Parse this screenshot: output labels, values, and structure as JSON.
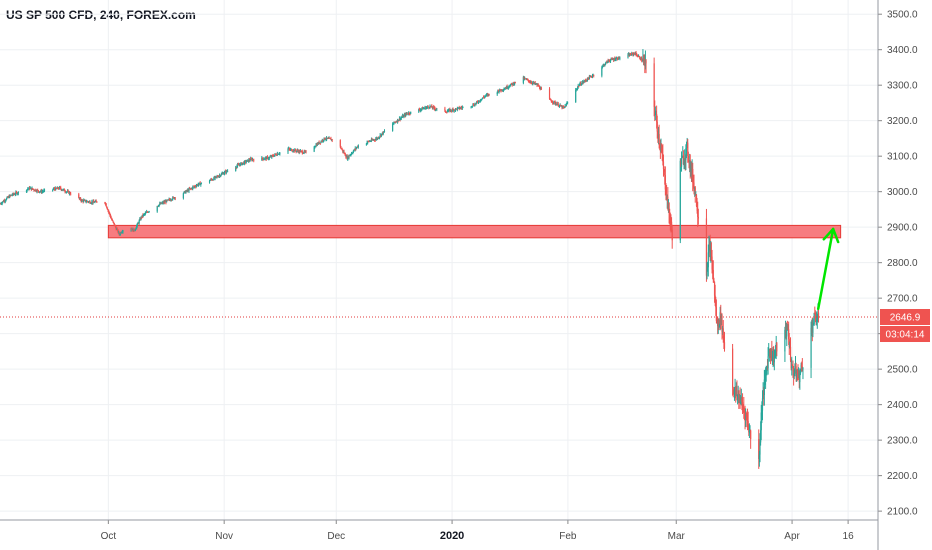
{
  "header": {
    "title": "US SP 500 CFD, 240, FOREX.com"
  },
  "price_tag": {
    "price": "2646.9",
    "countdown": "03:04:14"
  },
  "colors": {
    "up": "#26a69a",
    "down": "#ef5350",
    "zone_fill": "#f77c80",
    "zone_border": "#e53935",
    "arrow": "#00e600",
    "grid": "#eef0f3"
  },
  "chart_data": {
    "type": "candlestick",
    "symbol": "US SP 500 CFD",
    "timeframe": "240",
    "source": "FOREX.com",
    "y_ticks": [
      2100,
      2200,
      2300,
      2400,
      2500,
      2600,
      2700,
      2800,
      2900,
      3000,
      3100,
      3200,
      3300,
      3400,
      3500
    ],
    "y_tick_labels": [
      "2100.0",
      "2200.0",
      "2300.0",
      "2400.0",
      "2500.0",
      "2600.0",
      "2700.0",
      "2800.0",
      "2900.0",
      "3000.0",
      "3100.0",
      "3200.0",
      "3300.0",
      "3400.0",
      "3500.0"
    ],
    "ylim": [
      2075,
      3540
    ],
    "x_range": [
      "2019-09-02",
      "2020-04-24"
    ],
    "x_ticks": [
      {
        "date": "2019-10-01",
        "label": "Oct",
        "bold": false
      },
      {
        "date": "2019-11-01",
        "label": "Nov",
        "bold": false
      },
      {
        "date": "2019-12-01",
        "label": "Dec",
        "bold": false
      },
      {
        "date": "2020-01-01",
        "label": "2020",
        "bold": true
      },
      {
        "date": "2020-02-01",
        "label": "Feb",
        "bold": false
      },
      {
        "date": "2020-03-01",
        "label": "Mar",
        "bold": false
      },
      {
        "date": "2020-04-01",
        "label": "Apr",
        "bold": false
      },
      {
        "date": "2020-04-16",
        "label": "16",
        "bold": false
      }
    ],
    "path": [
      [
        "2019-09-02",
        2965
      ],
      [
        "2019-09-05",
        2990
      ],
      [
        "2019-09-10",
        3010
      ],
      [
        "2019-09-13",
        3000
      ],
      [
        "2019-09-18",
        3010
      ],
      [
        "2019-09-21",
        2995
      ],
      [
        "2019-09-24",
        2975
      ],
      [
        "2019-09-27",
        2970
      ],
      [
        "2019-09-30",
        2975
      ],
      [
        "2019-10-02",
        2920
      ],
      [
        "2019-10-04",
        2880
      ],
      [
        "2019-10-06",
        2905
      ],
      [
        "2019-10-08",
        2890
      ],
      [
        "2019-10-10",
        2930
      ],
      [
        "2019-10-13",
        2955
      ],
      [
        "2019-10-17",
        2975
      ],
      [
        "2019-10-21",
        2995
      ],
      [
        "2019-10-25",
        3020
      ],
      [
        "2019-10-29",
        3035
      ],
      [
        "2019-11-03",
        3065
      ],
      [
        "2019-11-08",
        3090
      ],
      [
        "2019-11-13",
        3095
      ],
      [
        "2019-11-18",
        3120
      ],
      [
        "2019-11-23",
        3110
      ],
      [
        "2019-11-28",
        3150
      ],
      [
        "2019-12-01",
        3145
      ],
      [
        "2019-12-04",
        3095
      ],
      [
        "2019-12-07",
        3130
      ],
      [
        "2019-12-12",
        3150
      ],
      [
        "2019-12-16",
        3190
      ],
      [
        "2019-12-20",
        3220
      ],
      [
        "2019-12-26",
        3240
      ],
      [
        "2019-12-30",
        3225
      ],
      [
        "2020-01-03",
        3235
      ],
      [
        "2020-01-07",
        3245
      ],
      [
        "2020-01-10",
        3270
      ],
      [
        "2020-01-15",
        3290
      ],
      [
        "2020-01-20",
        3320
      ],
      [
        "2020-01-24",
        3300
      ],
      [
        "2020-01-27",
        3260
      ],
      [
        "2020-01-31",
        3235
      ],
      [
        "2020-02-04",
        3300
      ],
      [
        "2020-02-08",
        3330
      ],
      [
        "2020-02-12",
        3370
      ],
      [
        "2020-02-16",
        3380
      ],
      [
        "2020-02-19",
        3390
      ],
      [
        "2020-02-21",
        3370
      ],
      [
        "2020-02-23",
        3330
      ],
      [
        "2020-02-25",
        3180
      ],
      [
        "2020-02-26",
        3120
      ],
      [
        "2020-02-28",
        2950
      ],
      [
        "2020-02-29",
        2880
      ],
      [
        "2020-03-02",
        3070
      ],
      [
        "2020-03-04",
        3120
      ],
      [
        "2020-03-06",
        3010
      ],
      [
        "2020-03-08",
        2860
      ],
      [
        "2020-03-09",
        2760
      ],
      [
        "2020-03-10",
        2850
      ],
      [
        "2020-03-11",
        2760
      ],
      [
        "2020-03-12",
        2620
      ],
      [
        "2020-03-13",
        2650
      ],
      [
        "2020-03-15",
        2480
      ],
      [
        "2020-03-17",
        2430
      ],
      [
        "2020-03-18",
        2420
      ],
      [
        "2020-03-20",
        2360
      ],
      [
        "2020-03-22",
        2260
      ],
      [
        "2020-03-23",
        2210
      ],
      [
        "2020-03-24",
        2400
      ],
      [
        "2020-03-26",
        2560
      ],
      [
        "2020-03-27",
        2530
      ],
      [
        "2020-03-29",
        2590
      ],
      [
        "2020-03-31",
        2610
      ],
      [
        "2020-04-01",
        2500
      ],
      [
        "2020-04-03",
        2480
      ],
      [
        "2020-04-05",
        2560
      ],
      [
        "2020-04-07",
        2640
      ],
      [
        "2020-04-08",
        2646.9
      ]
    ],
    "zones": [
      {
        "from": "2019-10-01",
        "to": "2020-04-14",
        "low": 2870,
        "high": 2905
      }
    ],
    "arrows": [
      {
        "from": [
          "2020-04-08",
          2670
        ],
        "to": [
          "2020-04-12",
          2895
        ]
      }
    ],
    "last_price": 2646.9
  }
}
